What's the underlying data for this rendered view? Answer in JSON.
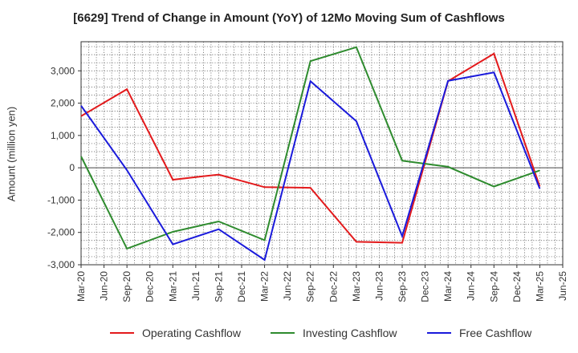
{
  "chart_data": {
    "type": "line",
    "title": "[6629]  Trend of Change in Amount (YoY) of 12Mo Moving Sum of Cashflows",
    "xlabel": "",
    "ylabel": "Amount (million yen)",
    "ylim": [
      -3000,
      3900
    ],
    "yticks": [
      3000,
      2000,
      1000,
      0,
      -1000,
      -2000,
      -3000
    ],
    "ytick_labels": [
      "3,000",
      "2,000",
      "1,000",
      "0",
      "-1,000",
      "-2,000",
      "-3,000"
    ],
    "categories": [
      "Mar-20",
      "Jun-20",
      "Sep-20",
      "Dec-20",
      "Mar-21",
      "Jun-21",
      "Sep-21",
      "Dec-21",
      "Mar-22",
      "Jun-22",
      "Sep-22",
      "Dec-22",
      "Mar-23",
      "Jun-23",
      "Sep-23",
      "Dec-23",
      "Mar-24",
      "Jun-24",
      "Sep-24",
      "Dec-24",
      "Mar-25",
      "Jun-25"
    ],
    "grid": true,
    "legend_position": "bottom",
    "series": [
      {
        "name": "Operating Cashflow",
        "color": "#e31a1c",
        "x": [
          "Mar-20",
          "Sep-20",
          "Mar-21",
          "Sep-21",
          "Mar-22",
          "Sep-22",
          "Mar-23",
          "Sep-23",
          "Mar-24",
          "Sep-24",
          "Mar-25"
        ],
        "values": [
          1600,
          2430,
          -370,
          -210,
          -600,
          -620,
          -2290,
          -2320,
          2680,
          3530,
          -580
        ]
      },
      {
        "name": "Investing Cashflow",
        "color": "#2e8b2e",
        "x": [
          "Mar-20",
          "Sep-20",
          "Mar-21",
          "Sep-21",
          "Mar-22",
          "Sep-22",
          "Mar-23",
          "Sep-23",
          "Mar-24",
          "Sep-24",
          "Mar-25"
        ],
        "values": [
          350,
          -2500,
          -1980,
          -1660,
          -2240,
          3300,
          3730,
          220,
          30,
          -580,
          -80
        ]
      },
      {
        "name": "Free Cashflow",
        "color": "#1a1adb",
        "x": [
          "Mar-20",
          "Sep-20",
          "Mar-21",
          "Sep-21",
          "Mar-22",
          "Sep-22",
          "Mar-23",
          "Sep-23",
          "Mar-24",
          "Sep-24",
          "Mar-25"
        ],
        "values": [
          1920,
          -70,
          -2370,
          -1900,
          -2850,
          2680,
          1440,
          -2120,
          2690,
          2950,
          -650
        ]
      }
    ]
  }
}
